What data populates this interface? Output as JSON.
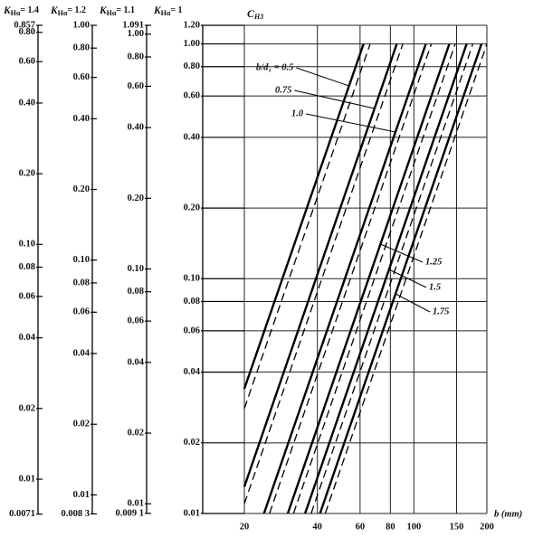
{
  "chart_data": {
    "type": "line",
    "ylabel": "C",
    "ylabel_sub": "H3",
    "xlabel": "b (mm)",
    "xscale": "log",
    "yscale": "log",
    "xlim": [
      20,
      200
    ],
    "ylim": [
      0.01,
      1.2
    ],
    "xticks": [
      20,
      40,
      60,
      80,
      100,
      150,
      200
    ],
    "yticks": [
      {
        "value": 1.2,
        "label": "1.20"
      },
      {
        "value": 1,
        "label": "1.00"
      },
      {
        "value": 0.8,
        "label": "0.80"
      },
      {
        "value": 0.6,
        "label": "0.60"
      },
      {
        "value": 0.4,
        "label": "0.40"
      },
      {
        "value": 0.2,
        "label": "0.20"
      },
      {
        "value": 0.1,
        "label": "0.10"
      },
      0.08,
      0.06,
      0.04,
      0.02,
      0.01
    ],
    "grid": true,
    "series": [
      {
        "style": "solid",
        "color": "#000",
        "x": [
          20,
          62
        ],
        "y": [
          0.034,
          1.0
        ]
      },
      {
        "style": "dashed",
        "color": "#000",
        "x": [
          20,
          66
        ],
        "y": [
          0.028,
          1.0
        ]
      },
      {
        "style": "solid",
        "color": "#000",
        "x": [
          20,
          85
        ],
        "y": [
          0.013,
          1.0
        ]
      },
      {
        "style": "dashed",
        "color": "#000",
        "x": [
          20,
          90
        ],
        "y": [
          0.011,
          1.0
        ]
      },
      {
        "style": "solid",
        "color": "#000",
        "x": [
          24.1,
          112
        ],
        "y": [
          0.01,
          1.0
        ]
      },
      {
        "style": "dashed",
        "color": "#000",
        "x": [
          25.4,
          118
        ],
        "y": [
          0.01,
          1.0
        ]
      },
      {
        "style": "solid",
        "color": "#000",
        "x": [
          30.2,
          140
        ],
        "y": [
          0.01,
          1.0
        ]
      },
      {
        "style": "dashed",
        "color": "#000",
        "x": [
          31.9,
          148
        ],
        "y": [
          0.01,
          1.0
        ]
      },
      {
        "style": "solid",
        "color": "#000",
        "x": [
          35.6,
          165
        ],
        "y": [
          0.01,
          1.0
        ]
      },
      {
        "style": "dashed",
        "color": "#000",
        "x": [
          37.7,
          175
        ],
        "y": [
          0.01,
          1.0
        ]
      },
      {
        "style": "solid",
        "color": "#000",
        "x": [
          41.0,
          190
        ],
        "y": [
          0.01,
          1.0
        ]
      },
      {
        "style": "dashed",
        "color": "#000",
        "x": [
          43.1,
          200
        ],
        "y": [
          0.01,
          1.0
        ]
      }
    ],
    "annotations": [
      "b/d₁ = 0.5",
      "0.75",
      "1.0",
      "1.25",
      "1.5",
      "1.75"
    ],
    "scales": [
      {
        "symbol": "K",
        "sub": "Hα",
        "value_label": "= 1.4",
        "value": 1.4,
        "ylim": [
          0.0071,
          0.857
        ],
        "yticks": [
          0.857,
          {
            "value": 0.8,
            "label": "0.80"
          },
          {
            "value": 0.6,
            "label": "0.60"
          },
          {
            "value": 0.4,
            "label": "0.40"
          },
          {
            "value": 0.2,
            "label": "0.20"
          },
          {
            "value": 0.1,
            "label": "0.10"
          },
          0.08,
          0.06,
          0.04,
          0.02,
          0.01,
          0.0071
        ]
      },
      {
        "symbol": "K",
        "sub": "Hα",
        "value_label": "= 1.2",
        "value": 1.2,
        "ylim": [
          0.0083,
          1
        ],
        "yticks": [
          {
            "value": 1,
            "label": "1.00"
          },
          {
            "value": 0.8,
            "label": "0.80"
          },
          {
            "value": 0.6,
            "label": "0.60"
          },
          {
            "value": 0.4,
            "label": "0.40"
          },
          {
            "value": 0.2,
            "label": "0.20"
          },
          {
            "value": 0.1,
            "label": "0.10"
          },
          0.08,
          0.06,
          0.04,
          0.02,
          0.01,
          {
            "value": 0.0083,
            "label": "0.008 3"
          }
        ]
      },
      {
        "symbol": "K",
        "sub": "Hα",
        "value_label": "= 1.1",
        "value": 1.1,
        "ylim": [
          0.0091,
          1.091
        ],
        "yticks": [
          1.091,
          {
            "value": 1,
            "label": "1.00"
          },
          {
            "value": 0.8,
            "label": "0.80"
          },
          {
            "value": 0.6,
            "label": "0.60"
          },
          {
            "value": 0.4,
            "label": "0.40"
          },
          {
            "value": 0.2,
            "label": "0.20"
          },
          {
            "value": 0.1,
            "label": "0.10"
          },
          0.08,
          0.06,
          0.04,
          0.02,
          0.01,
          {
            "value": 0.0091,
            "label": "0.009 1"
          }
        ]
      },
      {
        "symbol": "K",
        "sub": "Hα",
        "value_label": "= 1",
        "value": 1
      }
    ]
  }
}
